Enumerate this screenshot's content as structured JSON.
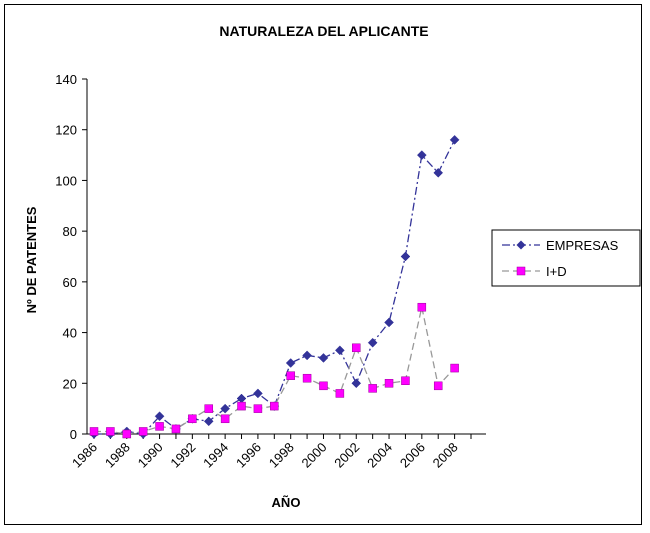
{
  "chart_data": {
    "type": "line",
    "title": "NATURALEZA DEL APLICANTE",
    "xlabel": "AÑO",
    "ylabel": "Nº DE PATENTES",
    "ylim": [
      0,
      140
    ],
    "yticks": [
      0,
      20,
      40,
      60,
      80,
      100,
      120,
      140
    ],
    "xlim": [
      1986,
      2009
    ],
    "xticks": [
      1986,
      1988,
      1990,
      1992,
      1994,
      1996,
      1998,
      2000,
      2002,
      2004,
      2006,
      2008
    ],
    "grid": false,
    "legend_position": "right",
    "x": [
      1986,
      1987,
      1988,
      1989,
      1990,
      1991,
      1992,
      1993,
      1994,
      1995,
      1996,
      1997,
      1998,
      1999,
      2000,
      2001,
      2002,
      2003,
      2004,
      2005,
      2006,
      2007,
      2008,
      2009
    ],
    "series": [
      {
        "name": "EMPRESAS",
        "color": "#333399",
        "marker": "diamond",
        "dash": "dash-dot",
        "values": [
          0,
          0,
          1,
          0,
          7,
          2,
          6,
          5,
          10,
          14,
          16,
          11,
          28,
          31,
          30,
          33,
          20,
          36,
          44,
          70,
          110,
          103,
          116,
          null
        ]
      },
      {
        "name": "I+D",
        "color": "#FF00FF",
        "line_color": "#999999",
        "marker": "square",
        "dash": "dashed",
        "values": [
          1,
          1,
          0,
          1,
          3,
          2,
          6,
          10,
          6,
          11,
          10,
          11,
          23,
          22,
          19,
          16,
          34,
          18,
          20,
          21,
          50,
          19,
          26,
          null
        ]
      }
    ]
  }
}
